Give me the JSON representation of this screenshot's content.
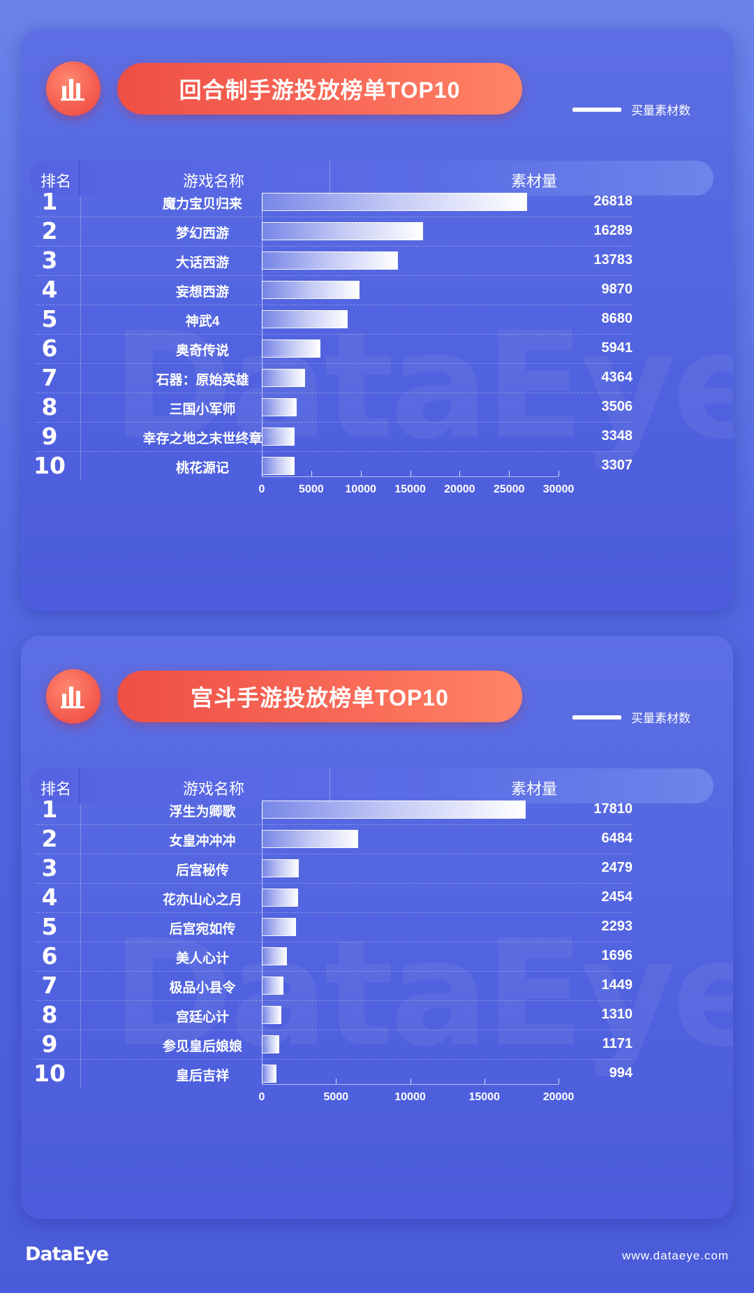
{
  "legend_label": "买量素材数",
  "header": {
    "rank": "排名",
    "name": "游戏名称",
    "count": "素材量"
  },
  "chart_data": [
    {
      "type": "bar",
      "title": "回合制手游投放榜单TOP10",
      "legend": "买量素材数",
      "ranks": [
        "1",
        "2",
        "3",
        "4",
        "5",
        "6",
        "7",
        "8",
        "9",
        "10"
      ],
      "categories": [
        "魔力宝贝归来",
        "梦幻西游",
        "大话西游",
        "妄想西游",
        "神武4",
        "奥奇传说",
        "石器：原始英雄",
        "三国小军师",
        "幸存之地之末世终章",
        "桃花源记"
      ],
      "values": [
        26818,
        16289,
        13783,
        9870,
        8680,
        5941,
        4364,
        3506,
        3348,
        3307
      ],
      "xlim": [
        0,
        30000
      ],
      "ticks": [
        0,
        5000,
        10000,
        15000,
        20000,
        25000,
        30000
      ],
      "orientation": "horizontal"
    },
    {
      "type": "bar",
      "title": "宫斗手游投放榜单TOP10",
      "legend": "买量素材数",
      "ranks": [
        "1",
        "2",
        "3",
        "4",
        "5",
        "6",
        "7",
        "8",
        "9",
        "10"
      ],
      "categories": [
        "浮生为卿歌",
        "女皇冲冲冲",
        "后宫秘传",
        "花亦山心之月",
        "后宫宛如传",
        "美人心计",
        "极品小县令",
        "宫廷心计",
        "参见皇后娘娘",
        "皇后吉祥"
      ],
      "values": [
        17810,
        6484,
        2479,
        2454,
        2293,
        1696,
        1449,
        1310,
        1171,
        994
      ],
      "xlim": [
        0,
        20000
      ],
      "ticks": [
        0,
        5000,
        10000,
        15000,
        20000
      ],
      "orientation": "horizontal"
    }
  ],
  "watermark": "DataEye",
  "footer": {
    "brand": "DataEye",
    "url": "www.dataeye.com"
  },
  "colors": {
    "background": "#5a6fe2",
    "accent": "#f5594c",
    "bar": "#ffffff"
  }
}
